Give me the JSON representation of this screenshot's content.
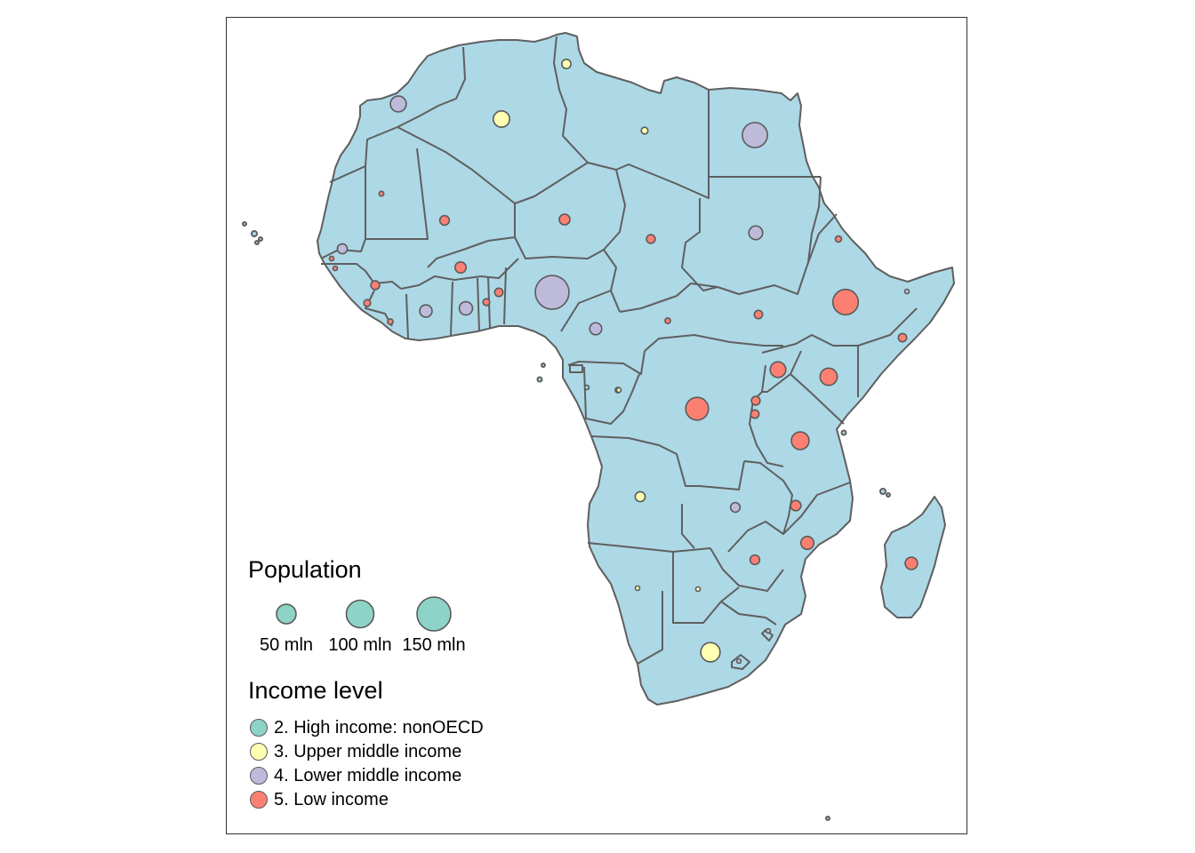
{
  "map": {
    "land_color": "#add8e6",
    "border_color": "#5f5f5f",
    "symbols": [
      {
        "country": "Tunisia",
        "population_mln": 11,
        "income": 3
      },
      {
        "country": "Morocco",
        "population_mln": 33,
        "income": 4
      },
      {
        "country": "Algeria",
        "population_mln": 35,
        "income": 3
      },
      {
        "country": "Libya",
        "population_mln": 6,
        "income": 3
      },
      {
        "country": "Egypt",
        "population_mln": 83,
        "income": 4
      },
      {
        "country": "Mauritania",
        "population_mln": 3,
        "income": 5
      },
      {
        "country": "Mali",
        "population_mln": 12,
        "income": 5
      },
      {
        "country": "Niger",
        "population_mln": 15,
        "income": 5
      },
      {
        "country": "Chad",
        "population_mln": 10,
        "income": 5
      },
      {
        "country": "Sudan",
        "population_mln": 25,
        "income": 4
      },
      {
        "country": "Eritrea",
        "population_mln": 5,
        "income": 5
      },
      {
        "country": "Senegal",
        "population_mln": 13,
        "income": 4
      },
      {
        "country": "Gambia",
        "population_mln": 2,
        "income": 5
      },
      {
        "country": "Guinea-Bissau",
        "population_mln": 2,
        "income": 5
      },
      {
        "country": "Burkina Faso",
        "population_mln": 16,
        "income": 5
      },
      {
        "country": "Guinea",
        "population_mln": 10,
        "income": 5
      },
      {
        "country": "Sierra Leone",
        "population_mln": 6,
        "income": 5
      },
      {
        "country": "Liberia",
        "population_mln": 4,
        "income": 5
      },
      {
        "country": "Ivory Coast",
        "population_mln": 20,
        "income": 4
      },
      {
        "country": "Ghana",
        "population_mln": 23,
        "income": 4
      },
      {
        "country": "Togo",
        "population_mln": 6,
        "income": 5
      },
      {
        "country": "Benin",
        "population_mln": 9,
        "income": 5
      },
      {
        "country": "Nigeria",
        "population_mln": 149,
        "income": 4
      },
      {
        "country": "Cameroon",
        "population_mln": 19,
        "income": 4
      },
      {
        "country": "Central African Republic",
        "population_mln": 4,
        "income": 5
      },
      {
        "country": "South Sudan",
        "population_mln": 9,
        "income": 5
      },
      {
        "country": "Ethiopia",
        "population_mln": 85,
        "income": 5
      },
      {
        "country": "Djibouti",
        "population_mln": 1,
        "income": 4
      },
      {
        "country": "Somalia",
        "population_mln": 9,
        "income": 5
      },
      {
        "country": "Uganda",
        "population_mln": 32,
        "income": 5
      },
      {
        "country": "Kenya",
        "population_mln": 39,
        "income": 5
      },
      {
        "country": "Rwanda",
        "population_mln": 10,
        "income": 5
      },
      {
        "country": "Burundi",
        "population_mln": 9,
        "income": 5
      },
      {
        "country": "Equatorial Guinea",
        "population_mln": 1,
        "income": 2
      },
      {
        "country": "Gabon",
        "population_mln": 1,
        "income": 3
      },
      {
        "country": "Republic of the Congo",
        "population_mln": 4,
        "income": 4
      },
      {
        "country": "Democratic Republic of the Congo",
        "population_mln": 68,
        "income": 5
      },
      {
        "country": "Tanzania",
        "population_mln": 41,
        "income": 5
      },
      {
        "country": "Angola",
        "population_mln": 13,
        "income": 3
      },
      {
        "country": "Zambia",
        "population_mln": 12,
        "income": 4
      },
      {
        "country": "Malawi",
        "population_mln": 14,
        "income": 5
      },
      {
        "country": "Mozambique",
        "population_mln": 22,
        "income": 5
      },
      {
        "country": "Zimbabwe",
        "population_mln": 12,
        "income": 5
      },
      {
        "country": "Madagascar",
        "population_mln": 20,
        "income": 5
      },
      {
        "country": "Namibia",
        "population_mln": 2,
        "income": 3
      },
      {
        "country": "Botswana",
        "population_mln": 2,
        "income": 3
      },
      {
        "country": "South Africa",
        "population_mln": 49,
        "income": 3
      },
      {
        "country": "Swaziland",
        "population_mln": 1,
        "income": 4
      },
      {
        "country": "Lesotho",
        "population_mln": 2,
        "income": 4
      }
    ]
  },
  "legend": {
    "population_title": "Population",
    "population_items": [
      {
        "label": "50 mln",
        "value_mln": 50
      },
      {
        "label": "100 mln",
        "value_mln": 100
      },
      {
        "label": "150 mln",
        "value_mln": 150
      }
    ],
    "population_symbol_color": "#8dd3c7",
    "income_title": "Income level",
    "income_items": [
      {
        "label": "2. High income: nonOECD",
        "color": "#8dd3c7"
      },
      {
        "label": "3. Upper middle income",
        "color": "#ffffb3"
      },
      {
        "label": "4. Lower middle income",
        "color": "#bebada"
      },
      {
        "label": "5. Low income",
        "color": "#fb8072"
      }
    ]
  }
}
